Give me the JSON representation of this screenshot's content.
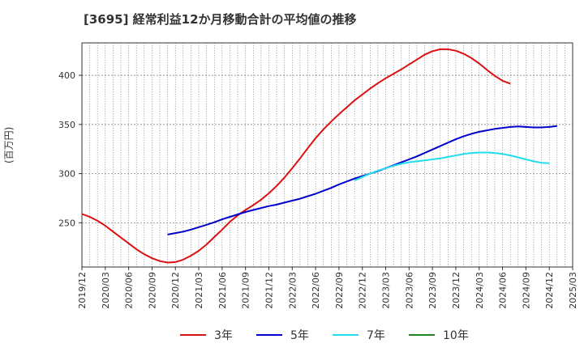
{
  "title": "[3695]  経常利益12か月移動合計の平均値の推移",
  "colors": {
    "3年": "#dd1111",
    "5年": "#0000cc",
    "7年": "#22ddee",
    "10年": "#228822"
  },
  "chart_data": {
    "type": "line",
    "title": "[3695]  経常利益12か月移動合計の平均値の推移",
    "ylabel": "(百万円)",
    "xlabel": "",
    "x_ticks": [
      "2019/12",
      "2020/03",
      "2020/06",
      "2020/09",
      "2020/12",
      "2021/03",
      "2021/06",
      "2021/09",
      "2021/12",
      "2022/03",
      "2022/06",
      "2022/09",
      "2022/12",
      "2023/03",
      "2023/06",
      "2023/09",
      "2023/12",
      "2024/03",
      "2024/06",
      "2024/09",
      "2024/12",
      "2025/03"
    ],
    "y_ticks": [
      250,
      300,
      350,
      400
    ],
    "ylim": [
      205,
      433
    ],
    "grid": true,
    "legend_position": "bottom",
    "series": [
      {
        "name": "3年",
        "start": "2019/12",
        "values": [
          259,
          256,
          252,
          247,
          241,
          235,
          229,
          223,
          218,
          214,
          211,
          209.5,
          210,
          212.5,
          216.5,
          221.5,
          228,
          235.5,
          243,
          251,
          257.5,
          263,
          268,
          273.5,
          280,
          287.5,
          296,
          305.5,
          315.5,
          326,
          336,
          345,
          353,
          360.5,
          367.5,
          374.5,
          380.5,
          386.5,
          392,
          397,
          401.5,
          406,
          411,
          416,
          421,
          424.5,
          426.5,
          426.5,
          425,
          422,
          417.5,
          412,
          405.5,
          399.5,
          394.5,
          391.5
        ]
      },
      {
        "name": "5年",
        "start": "2020/11",
        "values": [
          238,
          239.5,
          241,
          243,
          245.5,
          248,
          250.5,
          253.5,
          256,
          258.5,
          261,
          263,
          265,
          267,
          268.5,
          270.5,
          272.5,
          274.5,
          277,
          279.5,
          282.5,
          285.5,
          289,
          292,
          295,
          297.5,
          300,
          302.5,
          305.5,
          308.5,
          311.5,
          314.5,
          317.5,
          321,
          324.5,
          328,
          331.5,
          335,
          338,
          340.5,
          342.5,
          344,
          345.5,
          346.5,
          347.5,
          348,
          347.5,
          347,
          347,
          347.5,
          348.5
        ]
      },
      {
        "name": "7年",
        "start": "2022/11",
        "values": [
          293,
          296.5,
          300,
          303,
          305.5,
          308,
          310,
          311.5,
          312.5,
          313.5,
          314.5,
          315.5,
          317,
          318.5,
          320,
          321,
          321.5,
          321.5,
          321,
          320,
          318.5,
          316.5,
          314.5,
          312.5,
          311,
          310.5
        ]
      },
      {
        "name": "10年",
        "start": "2024/12",
        "values": []
      }
    ]
  }
}
